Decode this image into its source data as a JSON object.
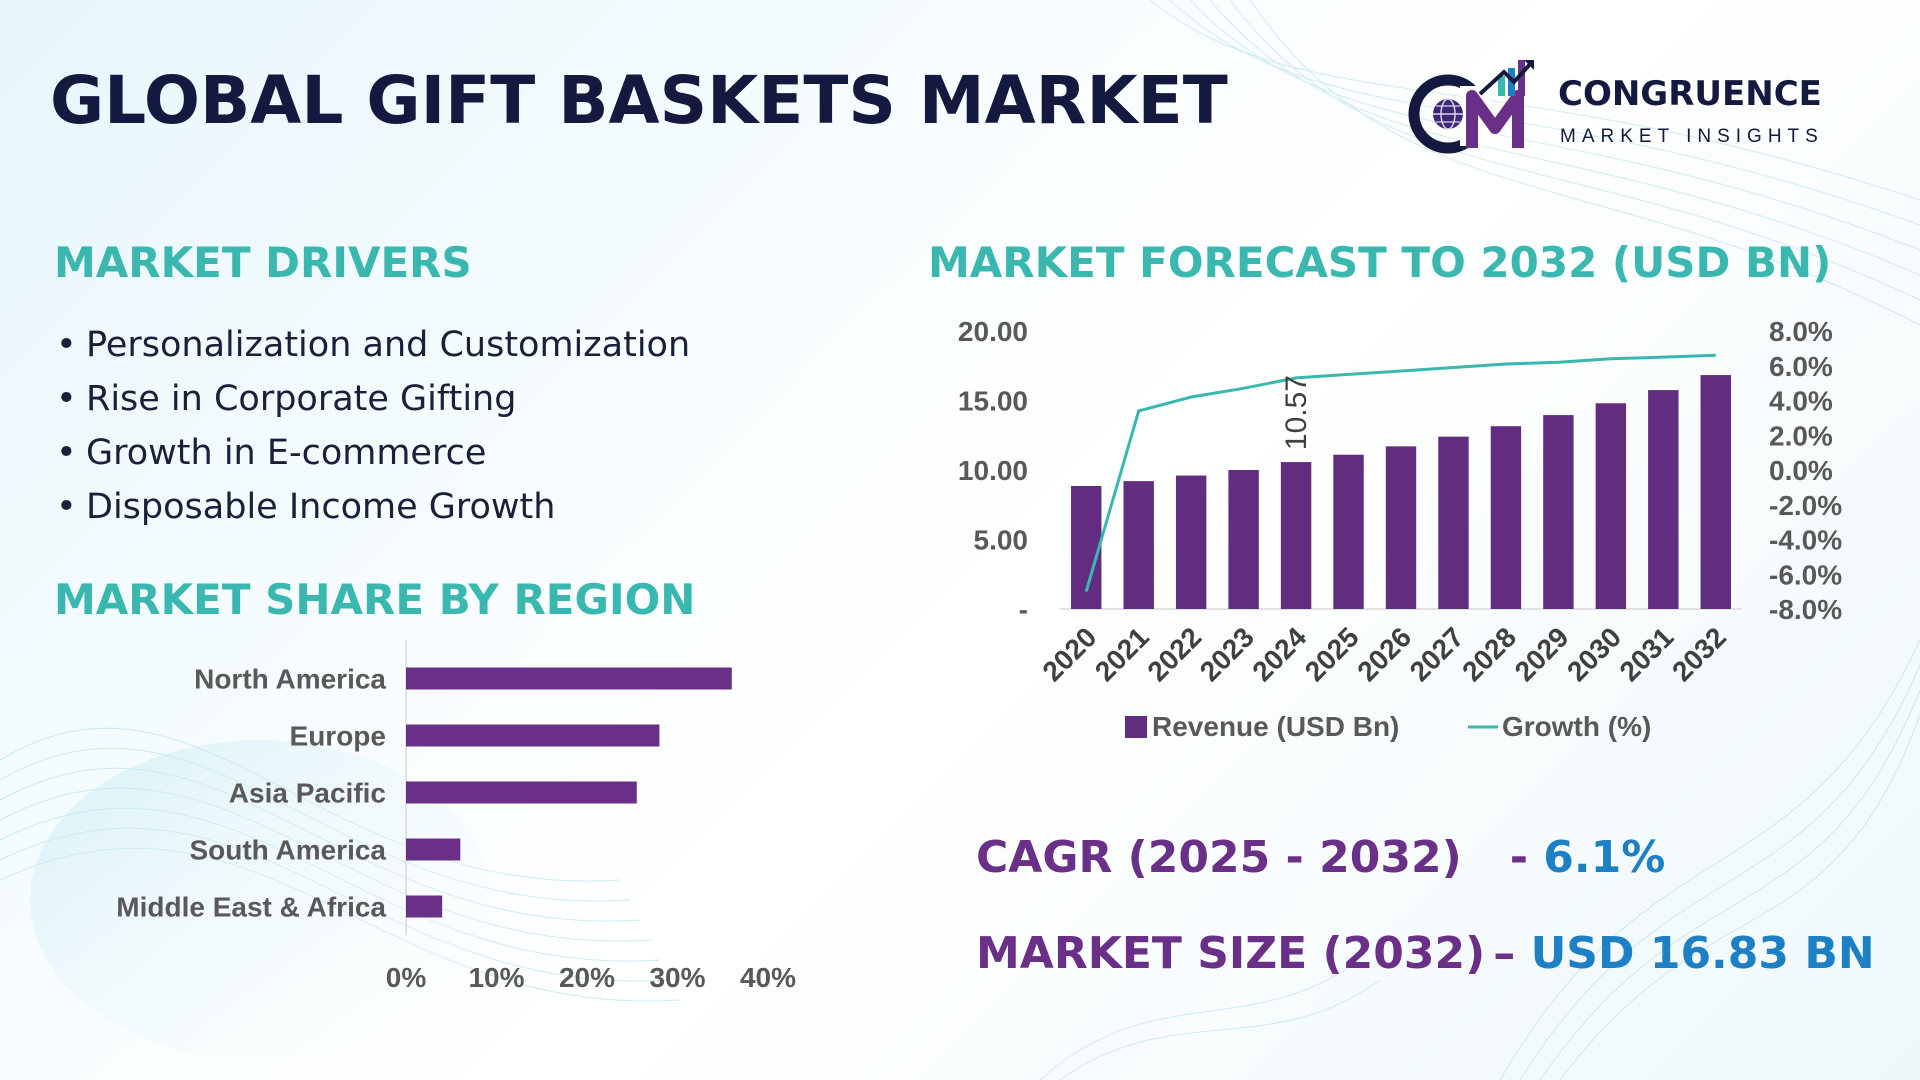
{
  "title": "GLOBAL GIFT BASKETS MARKET",
  "brand": {
    "name": "CONGRUENCE",
    "tagline": "MARKET INSIGHTS",
    "logo_icon": "cm-globe-chart-logo",
    "colors": {
      "navy": "#141a3f",
      "purple": "#6a2f86",
      "teal": "#3ab8b0"
    }
  },
  "drivers": {
    "title": "MARKET DRIVERS",
    "items": [
      "Personalization and Customization",
      "Rise in Corporate Gifting",
      "Growth in E-commerce",
      "Disposable Income Growth"
    ]
  },
  "share": {
    "title": "MARKET SHARE BY REGION"
  },
  "forecast": {
    "title": "MARKET FORECAST TO 2032 (USD BN)"
  },
  "kpis": {
    "cagr_label": "CAGR (2025 - 2032)",
    "cagr_sep": "- ",
    "cagr_value": "6.1%",
    "size_label": "MARKET SIZE (2032)",
    "size_sep": "– ",
    "size_value": "USD 16.83 BN"
  },
  "chart_data": [
    {
      "type": "bar",
      "orientation": "horizontal",
      "title": "MARKET SHARE BY REGION",
      "categories": [
        "North America",
        "Europe",
        "Asia Pacific",
        "South America",
        "Middle East & Africa"
      ],
      "values": [
        36,
        28,
        25.5,
        6,
        4
      ],
      "unit": "%",
      "xlim": [
        0,
        40
      ],
      "xticks": [
        "0%",
        "10%",
        "20%",
        "30%",
        "40%"
      ],
      "bar_color": "#6a2f86",
      "grid": false
    },
    {
      "type": "bar+line",
      "title": "MARKET FORECAST TO 2032 (USD BN)",
      "categories": [
        "2020",
        "2021",
        "2022",
        "2023",
        "2024",
        "2025",
        "2026",
        "2027",
        "2028",
        "2029",
        "2030",
        "2031",
        "2032"
      ],
      "series": [
        {
          "name": "Revenue (USD Bn)",
          "type": "bar",
          "axis": "left",
          "color": "#632d7f",
          "values": [
            8.85,
            9.2,
            9.6,
            10.0,
            10.57,
            11.1,
            11.7,
            12.4,
            13.15,
            13.95,
            14.8,
            15.75,
            16.83
          ]
        },
        {
          "name": "Growth (%)",
          "type": "line",
          "axis": "right",
          "color": "#3ab8b0",
          "values": [
            -7.0,
            3.4,
            4.2,
            4.7,
            5.3,
            5.5,
            5.7,
            5.9,
            6.1,
            6.2,
            6.4,
            6.5,
            6.6
          ]
        }
      ],
      "data_labels": [
        {
          "category": "2024",
          "text": "10.57"
        }
      ],
      "y_left": {
        "lim": [
          0,
          20
        ],
        "ticks": [
          "-",
          "5.00",
          "10.00",
          "15.00",
          "20.00"
        ]
      },
      "y_right": {
        "lim": [
          -8,
          8
        ],
        "ticks": [
          "-8.0%",
          "-6.0%",
          "-4.0%",
          "-2.0%",
          "0.0%",
          "2.0%",
          "4.0%",
          "6.0%",
          "8.0%"
        ]
      },
      "legend_position": "bottom",
      "grid": false
    }
  ]
}
